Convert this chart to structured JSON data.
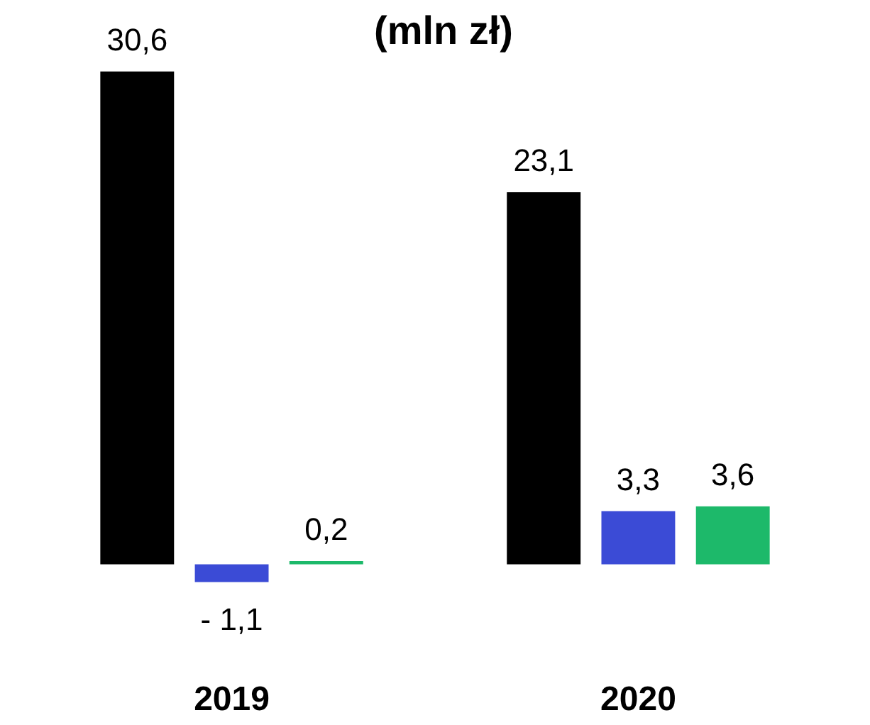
{
  "chart_data": {
    "type": "bar",
    "title": "(mln zł)",
    "categories": [
      "2019",
      "2020"
    ],
    "series": [
      {
        "color": "#000000",
        "values": [
          30.6,
          23.1
        ],
        "value_labels": [
          "30,6",
          "23,1"
        ]
      },
      {
        "color": "#3b4bd6",
        "values": [
          -1.1,
          3.3
        ],
        "value_labels": [
          "- 1,1",
          "3,3"
        ]
      },
      {
        "color": "#1db96a",
        "values": [
          0.2,
          3.6
        ],
        "value_labels": [
          "0,2",
          "3,6"
        ]
      }
    ],
    "legend": false,
    "grid": false
  }
}
